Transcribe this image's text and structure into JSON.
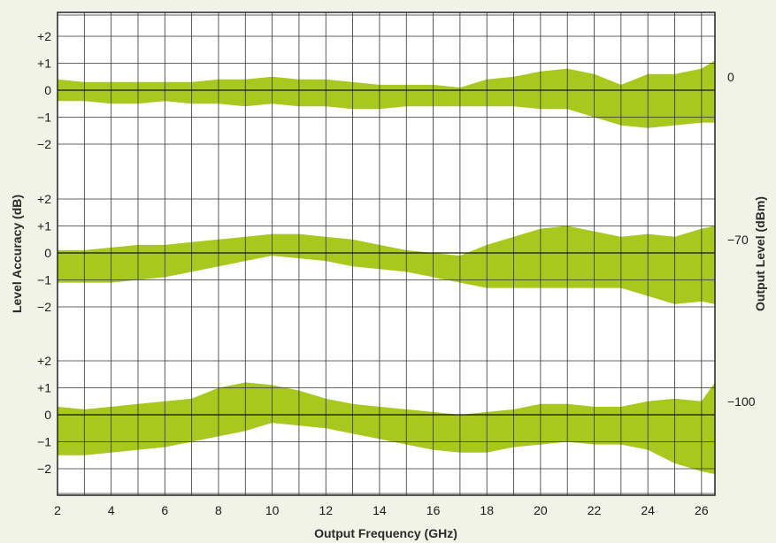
{
  "chart_data": {
    "type": "area",
    "xlabel": "Output Frequency (GHz)",
    "ylabel": "Level Accuracy (dB)",
    "ylabel_right": "Output Level (dBm)",
    "xlim": [
      2,
      26.5
    ],
    "x_ticks": [
      "2",
      "4",
      "6",
      "8",
      "10",
      "12",
      "14",
      "16",
      "18",
      "20",
      "22",
      "24",
      "26"
    ],
    "y_ticks": [
      "+2",
      "+1",
      "0",
      "−1",
      "−2"
    ],
    "grid": true,
    "band_color": "#a8c81e",
    "panels": [
      {
        "output_level": "0",
        "ylim": [
          -2,
          2
        ],
        "x": [
          2,
          3,
          4,
          5,
          6,
          7,
          8,
          9,
          10,
          11,
          12,
          13,
          14,
          15,
          16,
          17,
          18,
          19,
          20,
          21,
          22,
          23,
          24,
          25,
          26,
          26.5
        ],
        "upper": [
          0.4,
          0.3,
          0.3,
          0.3,
          0.3,
          0.3,
          0.4,
          0.4,
          0.5,
          0.4,
          0.4,
          0.3,
          0.2,
          0.2,
          0.2,
          0.1,
          0.4,
          0.5,
          0.7,
          0.8,
          0.6,
          0.2,
          0.6,
          0.6,
          0.8,
          1.1
        ],
        "lower": [
          -0.4,
          -0.4,
          -0.5,
          -0.5,
          -0.4,
          -0.5,
          -0.5,
          -0.6,
          -0.5,
          -0.6,
          -0.6,
          -0.7,
          -0.7,
          -0.6,
          -0.6,
          -0.6,
          -0.6,
          -0.6,
          -0.7,
          -0.7,
          -1.0,
          -1.3,
          -1.4,
          -1.3,
          -1.2,
          -1.2
        ]
      },
      {
        "output_level": "−70",
        "ylim": [
          -2,
          2
        ],
        "x": [
          2,
          3,
          4,
          5,
          6,
          7,
          8,
          9,
          10,
          11,
          12,
          13,
          14,
          15,
          16,
          17,
          18,
          19,
          20,
          21,
          22,
          23,
          24,
          25,
          26,
          26.5
        ],
        "upper": [
          0.1,
          0.1,
          0.2,
          0.3,
          0.3,
          0.4,
          0.5,
          0.6,
          0.7,
          0.7,
          0.6,
          0.5,
          0.3,
          0.1,
          0.0,
          -0.1,
          0.3,
          0.6,
          0.9,
          1.0,
          0.8,
          0.6,
          0.7,
          0.6,
          0.9,
          1.0
        ],
        "lower": [
          -1.1,
          -1.1,
          -1.1,
          -1.0,
          -0.9,
          -0.7,
          -0.5,
          -0.3,
          -0.1,
          -0.2,
          -0.3,
          -0.5,
          -0.6,
          -0.7,
          -0.9,
          -1.1,
          -1.3,
          -1.3,
          -1.3,
          -1.3,
          -1.3,
          -1.3,
          -1.6,
          -1.9,
          -1.8,
          -1.9
        ]
      },
      {
        "output_level": "−100",
        "ylim": [
          -2,
          2
        ],
        "x": [
          2,
          3,
          4,
          5,
          6,
          7,
          8,
          9,
          10,
          11,
          12,
          13,
          14,
          15,
          16,
          17,
          18,
          19,
          20,
          21,
          22,
          23,
          24,
          25,
          26,
          26.5
        ],
        "upper": [
          0.3,
          0.2,
          0.3,
          0.4,
          0.5,
          0.6,
          1.0,
          1.2,
          1.1,
          0.9,
          0.6,
          0.4,
          0.3,
          0.2,
          0.1,
          0.0,
          0.1,
          0.2,
          0.4,
          0.4,
          0.3,
          0.3,
          0.5,
          0.6,
          0.5,
          1.2
        ],
        "lower": [
          -1.5,
          -1.5,
          -1.4,
          -1.3,
          -1.2,
          -1.0,
          -0.8,
          -0.6,
          -0.3,
          -0.4,
          -0.5,
          -0.7,
          -0.9,
          -1.1,
          -1.3,
          -1.4,
          -1.4,
          -1.2,
          -1.1,
          -1.0,
          -1.1,
          -1.1,
          -1.3,
          -1.8,
          -2.1,
          -2.2
        ]
      }
    ]
  }
}
